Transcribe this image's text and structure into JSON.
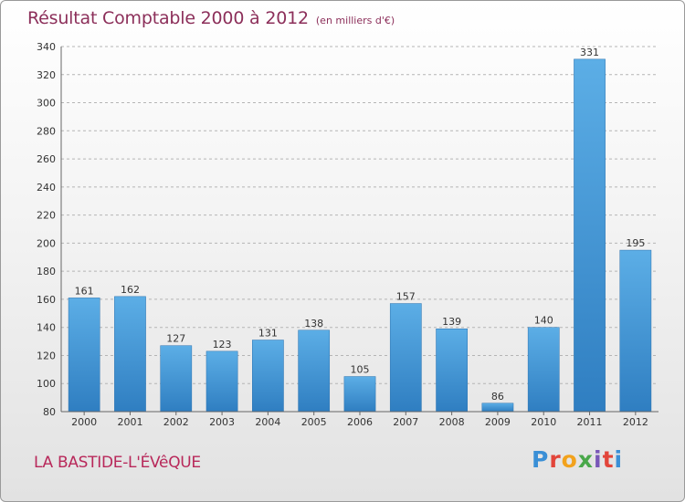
{
  "header": {
    "title": "Résultat Comptable 2000 à 2012",
    "subtitle": "(en milliers d'€)"
  },
  "footer": {
    "commune": "LA BASTIDE-L'ÉVêQUE",
    "logo_text": "Proxiti"
  },
  "colors": {
    "title": "#8c2f5a",
    "commune": "#b8285a",
    "bar_light": "#5caee6",
    "bar_dark": "#2f7ec1",
    "grid": "#b5b5b5"
  },
  "chart_data": {
    "type": "bar",
    "title": "Résultat Comptable 2000 à 2012",
    "subtitle": "(en milliers d'€)",
    "categories": [
      "2000",
      "2001",
      "2002",
      "2003",
      "2004",
      "2005",
      "2006",
      "2007",
      "2008",
      "2009",
      "2010",
      "2011",
      "2012"
    ],
    "values": [
      161,
      162,
      127,
      123,
      131,
      138,
      105,
      157,
      139,
      86,
      140,
      331,
      195
    ],
    "ylim": [
      80,
      340
    ],
    "yticks": [
      80,
      100,
      120,
      140,
      160,
      180,
      200,
      220,
      240,
      260,
      280,
      300,
      320,
      340
    ],
    "grid": "dashed horizontal",
    "data_labels": true,
    "legend": false
  }
}
